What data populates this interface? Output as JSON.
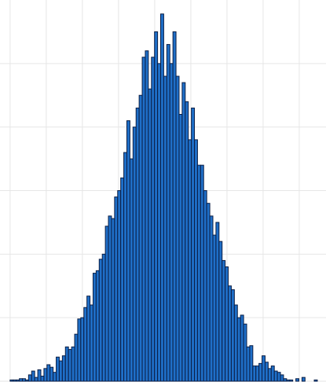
{
  "chart_data": {
    "type": "histogram",
    "bins": [
      -4,
      -3.915,
      -3.83,
      -3.745,
      -3.66,
      -3.575,
      -3.49,
      -3.405,
      -3.32,
      -3.235,
      -3.15,
      -3.065,
      -2.98,
      -2.895,
      -2.81,
      -2.725,
      -2.64,
      -2.555,
      -2.47,
      -2.385,
      -2.3,
      -2.215,
      -2.13,
      -2.045,
      -1.96,
      -1.875,
      -1.79,
      -1.705,
      -1.62,
      -1.535,
      -1.45,
      -1.365,
      -1.28,
      -1.195,
      -1.11,
      -1.025,
      -0.94,
      -0.855,
      -0.77,
      -0.685,
      -0.6,
      -0.515,
      -0.43,
      -0.345,
      -0.26,
      -0.175,
      -0.09,
      -0.005,
      0.08,
      0.165,
      0.25,
      0.335,
      0.42,
      0.505,
      0.59,
      0.675,
      0.76,
      0.845,
      0.93,
      1.015,
      1.1,
      1.185,
      1.27,
      1.355,
      1.44,
      1.525,
      1.61,
      1.695,
      1.78,
      1.865,
      1.95,
      2.035,
      2.12,
      2.205,
      2.29,
      2.375,
      2.46,
      2.545,
      2.63,
      2.715,
      2.8,
      2.885,
      2.97,
      3.055,
      3.14,
      3.225,
      3.31,
      3.395,
      3.48,
      3.565,
      3.65,
      3.735,
      3.82,
      3.905,
      3.99,
      4.075,
      4.16,
      4.245,
      4.33,
      4.415,
      4.5
    ],
    "counts": [
      1,
      1,
      1,
      2,
      2,
      1,
      5,
      8,
      3,
      9,
      4,
      10,
      13,
      11,
      7,
      19,
      16,
      20,
      27,
      25,
      27,
      37,
      49,
      50,
      58,
      67,
      60,
      85,
      87,
      96,
      100,
      122,
      130,
      128,
      145,
      150,
      160,
      180,
      205,
      175,
      200,
      215,
      225,
      255,
      260,
      230,
      255,
      275,
      250,
      289,
      240,
      265,
      250,
      275,
      240,
      210,
      235,
      220,
      190,
      215,
      190,
      170,
      170,
      150,
      140,
      130,
      115,
      125,
      110,
      95,
      90,
      75,
      72,
      60,
      50,
      52,
      45,
      27,
      28,
      12,
      12,
      14,
      20,
      15,
      10,
      12,
      8,
      7,
      5,
      2,
      1,
      1,
      0,
      2,
      0,
      3,
      0,
      0,
      0,
      1
    ],
    "color": "#1f6fc8",
    "edgecolor": "#0b1e45",
    "xlim": [
      -4.28,
      4.74
    ],
    "xticks": [
      -4,
      -3,
      -2,
      -1,
      0,
      1,
      2,
      3,
      4
    ],
    "ylim": [
      0,
      300
    ],
    "yticks": [
      0,
      50,
      100,
      150,
      200,
      250
    ],
    "grid": true
  }
}
